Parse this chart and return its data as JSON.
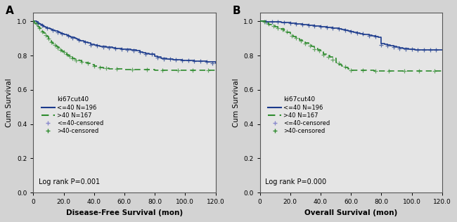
{
  "panel_A": {
    "title": "A",
    "xlabel": "Disease-Free Survival (mon)",
    "ylabel": "Cum Survival",
    "xlim": [
      0,
      120
    ],
    "ylim": [
      0.0,
      1.05
    ],
    "yticks": [
      0.0,
      0.2,
      0.4,
      0.6,
      0.8,
      1.0
    ],
    "xticks": [
      0,
      20,
      40,
      60,
      80,
      100,
      120
    ],
    "xtick_labels": [
      "0",
      "20.0",
      "40.0",
      "60.0",
      "80.0",
      "100.0",
      "120.0"
    ],
    "ytick_labels": [
      "0.0",
      "0.2",
      "0.4",
      "0.6",
      "0.8",
      "1.0"
    ],
    "log_rank": "Log rank P=0.001",
    "legend_title": "ki67cut40",
    "blue_label": "<=40 N=196",
    "green_label": ">40 N=167",
    "blue_censored_label": "<=40-censored",
    "green_censored_label": ">40-censored",
    "blue_color": "#1B3A8C",
    "green_color": "#2E8B2E",
    "bg_color": "#E5E5E5",
    "blue_steps_x": [
      0,
      1,
      2,
      3,
      4,
      5,
      6,
      7,
      8,
      9,
      10,
      11,
      12,
      13,
      14,
      15,
      16,
      17,
      18,
      19,
      20,
      21,
      22,
      23,
      24,
      25,
      26,
      27,
      28,
      29,
      30,
      31,
      32,
      33,
      34,
      36,
      38,
      40,
      42,
      44,
      46,
      48,
      50,
      52,
      54,
      56,
      58,
      60,
      62,
      64,
      66,
      68,
      70,
      72,
      74,
      76,
      78,
      80,
      82,
      84,
      86,
      88,
      90,
      92,
      94,
      96,
      98,
      100,
      102,
      104,
      106,
      108,
      110,
      112,
      114,
      116,
      118,
      120
    ],
    "blue_steps_y": [
      1.0,
      1.0,
      0.995,
      0.99,
      0.985,
      0.98,
      0.975,
      0.97,
      0.965,
      0.962,
      0.958,
      0.955,
      0.952,
      0.948,
      0.945,
      0.942,
      0.938,
      0.935,
      0.932,
      0.928,
      0.925,
      0.922,
      0.918,
      0.915,
      0.912,
      0.908,
      0.905,
      0.902,
      0.898,
      0.895,
      0.892,
      0.888,
      0.885,
      0.882,
      0.878,
      0.872,
      0.865,
      0.86,
      0.857,
      0.854,
      0.852,
      0.85,
      0.848,
      0.845,
      0.843,
      0.841,
      0.839,
      0.837,
      0.835,
      0.833,
      0.831,
      0.829,
      0.82,
      0.818,
      0.812,
      0.81,
      0.808,
      0.795,
      0.79,
      0.785,
      0.782,
      0.78,
      0.778,
      0.776,
      0.775,
      0.774,
      0.773,
      0.772,
      0.771,
      0.77,
      0.769,
      0.768,
      0.767,
      0.766,
      0.765,
      0.764,
      0.763,
      0.755
    ],
    "green_steps_x": [
      0,
      1,
      2,
      3,
      4,
      5,
      6,
      7,
      8,
      9,
      10,
      11,
      12,
      13,
      14,
      15,
      16,
      17,
      18,
      19,
      20,
      21,
      22,
      23,
      24,
      25,
      26,
      27,
      28,
      30,
      32,
      34,
      36,
      38,
      40,
      42,
      44,
      46,
      48,
      50,
      55,
      60,
      65,
      70,
      75,
      80,
      85,
      90,
      95,
      100,
      105,
      110,
      115,
      120
    ],
    "green_steps_y": [
      1.0,
      0.99,
      0.98,
      0.97,
      0.96,
      0.95,
      0.94,
      0.93,
      0.92,
      0.91,
      0.9,
      0.89,
      0.88,
      0.87,
      0.86,
      0.855,
      0.848,
      0.84,
      0.832,
      0.825,
      0.818,
      0.812,
      0.805,
      0.8,
      0.795,
      0.79,
      0.785,
      0.78,
      0.775,
      0.77,
      0.765,
      0.76,
      0.755,
      0.748,
      0.74,
      0.735,
      0.73,
      0.728,
      0.726,
      0.724,
      0.722,
      0.72,
      0.719,
      0.718,
      0.717,
      0.716,
      0.715,
      0.714,
      0.713,
      0.712,
      0.712,
      0.712,
      0.712,
      0.712
    ],
    "blue_censor_x": [
      3,
      6,
      9,
      13,
      16,
      19,
      23,
      26,
      30,
      34,
      38,
      42,
      46,
      50,
      54,
      58,
      62,
      66,
      70,
      74,
      78,
      82,
      86,
      90,
      94,
      98,
      102,
      106,
      110,
      114,
      118
    ],
    "blue_censor_y": [
      0.99,
      0.975,
      0.962,
      0.947,
      0.937,
      0.927,
      0.916,
      0.904,
      0.892,
      0.88,
      0.863,
      0.856,
      0.851,
      0.847,
      0.842,
      0.839,
      0.834,
      0.83,
      0.819,
      0.81,
      0.808,
      0.788,
      0.781,
      0.778,
      0.774,
      0.772,
      0.771,
      0.769,
      0.766,
      0.764,
      0.755
    ],
    "green_censor_x": [
      2,
      4,
      6,
      8,
      10,
      12,
      14,
      16,
      18,
      20,
      22,
      24,
      26,
      28,
      32,
      36,
      40,
      44,
      48,
      55,
      65,
      75,
      85,
      95,
      105,
      115
    ],
    "green_censor_y": [
      0.985,
      0.96,
      0.94,
      0.92,
      0.9,
      0.88,
      0.86,
      0.845,
      0.833,
      0.82,
      0.808,
      0.797,
      0.783,
      0.773,
      0.762,
      0.753,
      0.738,
      0.731,
      0.725,
      0.721,
      0.719,
      0.717,
      0.715,
      0.713,
      0.712,
      0.712
    ]
  },
  "panel_B": {
    "title": "B",
    "xlabel": "Overall Survival (mon)",
    "ylabel": "Cum Survival",
    "xlim": [
      0,
      120
    ],
    "ylim": [
      0.0,
      1.05
    ],
    "yticks": [
      0.0,
      0.2,
      0.4,
      0.6,
      0.8,
      1.0
    ],
    "xticks": [
      0,
      20,
      40,
      60,
      80,
      100,
      120
    ],
    "xtick_labels": [
      "0",
      "20.0",
      "40.0",
      "60.0",
      "80.0",
      "100.0",
      "120.0"
    ],
    "ytick_labels": [
      "0.0",
      "0.2",
      "0.4",
      "0.6",
      "0.8",
      "1.0"
    ],
    "log_rank": "Log rank P=0.000",
    "legend_title": "ki67cut40",
    "blue_label": "<=40 N=196",
    "green_label": ">40 N=167",
    "blue_censored_label": "<=40-censored",
    "green_censored_label": ">40-censored",
    "blue_color": "#1B3A8C",
    "green_color": "#2E8B2E",
    "bg_color": "#E5E5E5",
    "blue_steps_x": [
      0,
      2,
      4,
      6,
      8,
      10,
      12,
      14,
      16,
      18,
      20,
      22,
      24,
      26,
      28,
      30,
      32,
      34,
      36,
      38,
      40,
      42,
      44,
      46,
      48,
      50,
      52,
      54,
      56,
      58,
      60,
      62,
      64,
      66,
      68,
      70,
      72,
      74,
      76,
      78,
      80,
      82,
      84,
      86,
      88,
      90,
      92,
      94,
      96,
      98,
      100,
      102,
      104,
      106,
      108,
      110,
      112,
      114,
      116,
      118,
      120
    ],
    "blue_steps_y": [
      1.0,
      1.0,
      0.999,
      0.998,
      0.997,
      0.996,
      0.995,
      0.994,
      0.993,
      0.992,
      0.99,
      0.988,
      0.986,
      0.984,
      0.982,
      0.98,
      0.978,
      0.976,
      0.974,
      0.972,
      0.97,
      0.968,
      0.966,
      0.964,
      0.962,
      0.96,
      0.956,
      0.952,
      0.948,
      0.944,
      0.94,
      0.936,
      0.932,
      0.928,
      0.925,
      0.922,
      0.918,
      0.915,
      0.912,
      0.908,
      0.87,
      0.865,
      0.86,
      0.856,
      0.852,
      0.848,
      0.845,
      0.842,
      0.84,
      0.838,
      0.836,
      0.834,
      0.833,
      0.832,
      0.832,
      0.832,
      0.832,
      0.832,
      0.832,
      0.832,
      0.832
    ],
    "green_steps_x": [
      0,
      2,
      4,
      6,
      8,
      10,
      12,
      14,
      16,
      18,
      20,
      22,
      24,
      26,
      28,
      30,
      32,
      34,
      36,
      38,
      40,
      42,
      44,
      46,
      48,
      50,
      52,
      54,
      56,
      58,
      60,
      65,
      70,
      75,
      80,
      85,
      90,
      95,
      100,
      105,
      110,
      115,
      120
    ],
    "green_steps_y": [
      1.0,
      1.0,
      0.99,
      0.98,
      0.975,
      0.97,
      0.965,
      0.955,
      0.945,
      0.935,
      0.92,
      0.91,
      0.9,
      0.892,
      0.882,
      0.872,
      0.862,
      0.852,
      0.842,
      0.832,
      0.82,
      0.808,
      0.8,
      0.792,
      0.782,
      0.76,
      0.748,
      0.74,
      0.732,
      0.724,
      0.715,
      0.713,
      0.712,
      0.711,
      0.711,
      0.711,
      0.711,
      0.711,
      0.711,
      0.711,
      0.711,
      0.711,
      0.711
    ],
    "blue_censor_x": [
      4,
      8,
      12,
      16,
      20,
      24,
      28,
      32,
      36,
      40,
      44,
      48,
      52,
      56,
      60,
      64,
      68,
      72,
      76,
      80,
      84,
      88,
      92,
      96,
      100,
      104,
      108,
      112,
      116
    ],
    "blue_censor_y": [
      0.999,
      0.997,
      0.995,
      0.993,
      0.99,
      0.986,
      0.982,
      0.978,
      0.974,
      0.969,
      0.965,
      0.961,
      0.954,
      0.946,
      0.939,
      0.93,
      0.926,
      0.916,
      0.91,
      0.862,
      0.858,
      0.85,
      0.843,
      0.839,
      0.836,
      0.833,
      0.832,
      0.832,
      0.832
    ],
    "green_censor_x": [
      3,
      6,
      9,
      12,
      15,
      18,
      21,
      24,
      27,
      30,
      33,
      36,
      39,
      42,
      45,
      48,
      52,
      56,
      60,
      68,
      76,
      85,
      95,
      105,
      115
    ],
    "green_censor_y": [
      0.995,
      0.985,
      0.972,
      0.962,
      0.952,
      0.94,
      0.915,
      0.904,
      0.887,
      0.868,
      0.857,
      0.838,
      0.828,
      0.804,
      0.793,
      0.774,
      0.753,
      0.736,
      0.714,
      0.712,
      0.711,
      0.711,
      0.711,
      0.711,
      0.711
    ]
  }
}
